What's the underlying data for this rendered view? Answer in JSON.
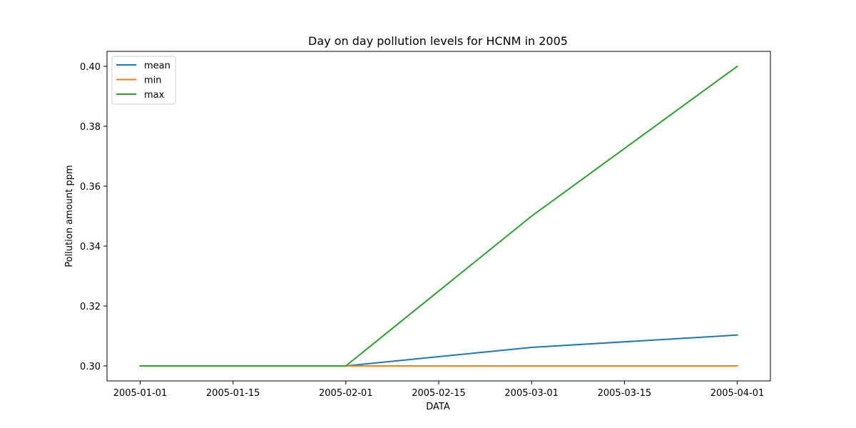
{
  "chart_data": {
    "type": "line",
    "title": "Day on day pollution levels for HCNM in 2005",
    "xlabel": "DATA",
    "ylabel": "Pollution amount ppm",
    "x": [
      "2005-01-01",
      "2005-02-01",
      "2005-03-01",
      "2005-04-01"
    ],
    "xlim": [
      "2004-12-27",
      "2005-04-06"
    ],
    "ylim": [
      0.295,
      0.405
    ],
    "x_ticks": [
      "2005-01-01",
      "2005-01-15",
      "2005-02-01",
      "2005-02-15",
      "2005-03-01",
      "2005-03-15",
      "2005-04-01"
    ],
    "y_ticks": [
      0.3,
      0.32,
      0.34,
      0.36,
      0.38,
      0.4
    ],
    "y_tick_labels": [
      "0.30",
      "0.32",
      "0.34",
      "0.36",
      "0.38",
      "0.40"
    ],
    "grid": false,
    "legend_position": "top-left",
    "series": [
      {
        "name": "mean",
        "color": "#1f77b4",
        "values": [
          0.3,
          0.3,
          0.3062,
          0.3103
        ]
      },
      {
        "name": "min",
        "color": "#ff7f0e",
        "values": [
          0.3,
          0.3,
          0.3,
          0.3
        ]
      },
      {
        "name": "max",
        "color": "#2ca02c",
        "values": [
          0.3,
          0.3,
          0.35,
          0.4
        ]
      }
    ]
  }
}
